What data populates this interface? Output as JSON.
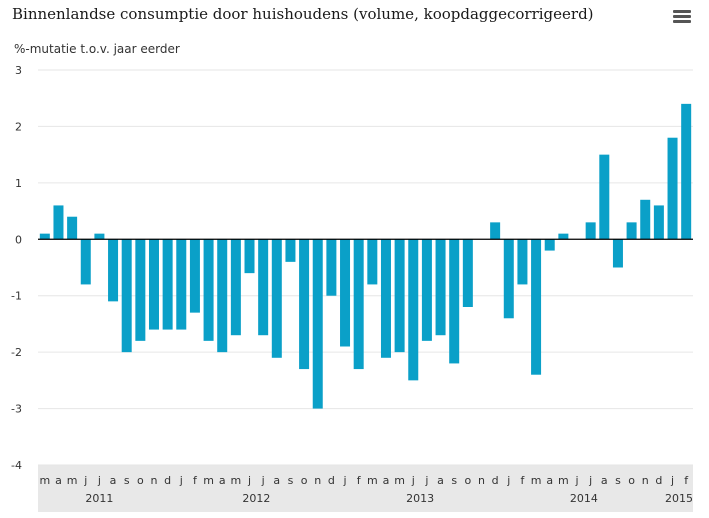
{
  "title": "Binnenlandse consumptie door huishoudens (volume, koopdaggecorrigeerd)",
  "menu_icon": "hamburger-menu-icon",
  "colors": {
    "bar": "#0aa0c8",
    "axis_band": "#e8e8e8",
    "grid": "#e6e6e6",
    "zero_line": "#000000"
  },
  "chart_data": {
    "type": "bar",
    "title": "Binnenlandse consumptie door huishoudens (volume, koopdaggecorrigeerd)",
    "ylabel": "%-mutatie t.o.v. jaar eerder",
    "xlabel": "",
    "ylim": [
      -4,
      3
    ],
    "yticks": [
      "3",
      "2",
      "1",
      "0",
      "-1",
      "-2",
      "-3",
      "-4"
    ],
    "grid": true,
    "legend": "none",
    "categories": [
      "m",
      "a",
      "m",
      "j",
      "j",
      "a",
      "s",
      "o",
      "n",
      "d",
      "j",
      "f",
      "m",
      "a",
      "m",
      "j",
      "j",
      "a",
      "s",
      "o",
      "n",
      "d",
      "j",
      "f",
      "m",
      "a",
      "m",
      "j",
      "j",
      "a",
      "s",
      "o",
      "n",
      "d",
      "j",
      "f",
      "m",
      "a",
      "m",
      "j",
      "j",
      "a",
      "s",
      "o",
      "n",
      "d",
      "j",
      "f"
    ],
    "values": [
      0.1,
      0.6,
      0.4,
      -0.8,
      0.1,
      -1.1,
      -2.0,
      -1.8,
      -1.6,
      -1.6,
      -1.6,
      -1.3,
      -1.8,
      -2.0,
      -1.7,
      -0.6,
      -1.7,
      -2.1,
      -0.4,
      -2.3,
      -3.0,
      -1.0,
      -1.9,
      -2.3,
      -0.8,
      -2.1,
      -2.0,
      -2.5,
      -1.8,
      -1.7,
      -2.2,
      -1.2,
      0.0,
      0.3,
      -1.4,
      -0.8,
      -2.4,
      -0.2,
      0.1,
      0.0,
      0.3,
      1.5,
      -0.5,
      0.3,
      0.7,
      0.6,
      1.8,
      2.4
    ],
    "years": [
      {
        "label": "2011",
        "index": 4
      },
      {
        "label": "2012",
        "index": 15.5
      },
      {
        "label": "2013",
        "index": 27.5
      },
      {
        "label": "2014",
        "index": 39.5
      },
      {
        "label": "2015",
        "index": 47
      }
    ]
  }
}
